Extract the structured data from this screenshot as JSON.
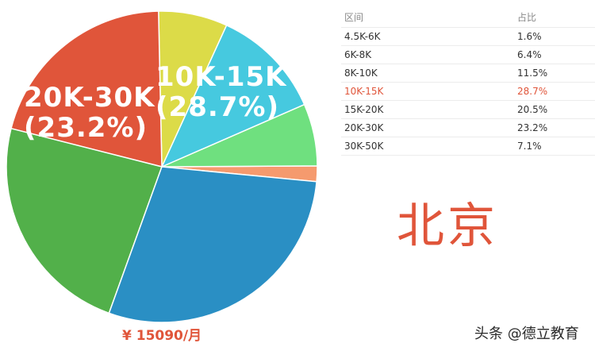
{
  "chart_data": {
    "type": "pie",
    "categories": [
      "4.5K-6K",
      "6K-8K",
      "8K-10K",
      "10K-15K",
      "15K-20K",
      "20K-30K",
      "30K-50K"
    ],
    "values": [
      1.6,
      6.4,
      11.5,
      28.7,
      20.5,
      23.2,
      7.1
    ],
    "colors": [
      "#f59a6e",
      "#6fe07f",
      "#46c9df",
      "#2a8fc4",
      "#e0553a",
      "#52b04a",
      "#dcdb48"
    ],
    "slice_labels": [
      {
        "category": "10K-15K",
        "line1": "10K-15K",
        "line2": "(28.7%)"
      },
      {
        "category": "20K-30K",
        "line1": "20K-30K",
        "line2": "(23.2%)"
      }
    ],
    "note": "¥ 15090/月"
  },
  "table": {
    "headers": [
      "区间",
      "占比"
    ],
    "rows": [
      {
        "range": "4.5K-6K",
        "share": "1.6%"
      },
      {
        "range": "6K-8K",
        "share": "6.4%"
      },
      {
        "range": "8K-10K",
        "share": "11.5%"
      },
      {
        "range": "10K-15K",
        "share": "28.7%",
        "highlight": true
      },
      {
        "range": "15K-20K",
        "share": "20.5%"
      },
      {
        "range": "20K-30K",
        "share": "23.2%"
      },
      {
        "range": "30K-50K",
        "share": "7.1%"
      }
    ]
  },
  "city": "北京",
  "watermark": "头条 @德立教育"
}
